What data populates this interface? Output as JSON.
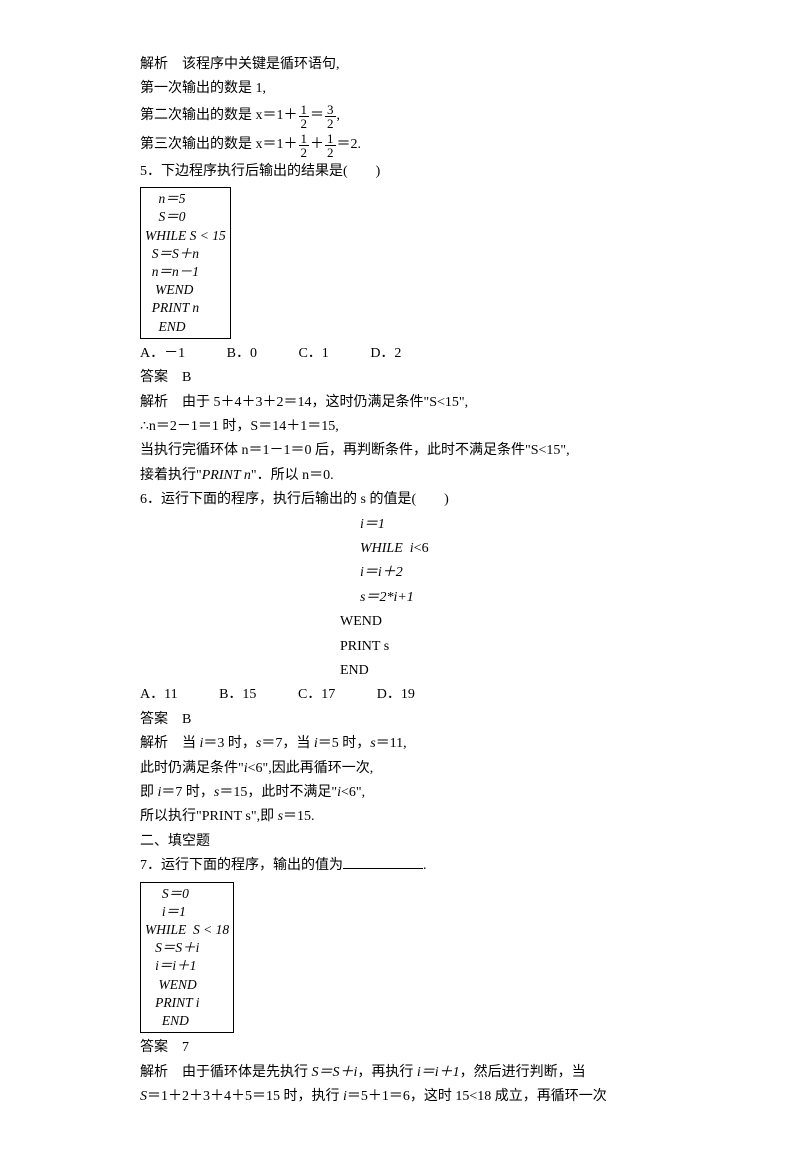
{
  "intro": {
    "l1": "解析　该程序中关键是循环语句,",
    "l2": "第一次输出的数是 1,",
    "l3a": "第二次输出的数是 x＝1＋",
    "l3b": "＝",
    "l3c": ",",
    "f1n": "1",
    "f1d": "2",
    "f2n": "3",
    "f2d": "2",
    "l4a": "第三次输出的数是 x＝1＋",
    "l4b": "＋",
    "l4c": "＝2.",
    "f3n": "1",
    "f3d": "2",
    "f4n": "1",
    "f4d": "2"
  },
  "q5": {
    "title": "5．下边程序执行后输出的结果是(　　)",
    "code": [
      "    n＝5",
      "    S＝0",
      "WHILE S < 15",
      "  S＝S＋n",
      "  n＝n－1",
      "   WEND",
      "  PRINT n",
      "    END"
    ],
    "optA": "A．－1",
    "optB": "B．0",
    "optC": "C．1",
    "optD": "D．2",
    "ans": "答案　B",
    "e1": "解析　由于 5＋4＋3＋2＝14，这时仍满足条件\"S<15\",",
    "e2": "∴n＝2－1＝1 时，S＝14＋1＝15,",
    "e3": "当执行完循环体 n＝1－1＝0 后，再判断条件，此时不满足条件\"S<15\",",
    "e4": "接着执行\"PRINT n\"．所以 n＝0."
  },
  "q6": {
    "title": "6．运行下面的程序，执行后输出的 s 的值是(　　)",
    "c1": "i＝1",
    "c2": "WHILE  i<6",
    "c3": " i＝i＋2",
    "c4": " s＝2*i+1",
    "c5": "WEND",
    "c6": "PRINT s",
    "c7": "END",
    "optA": "A．11",
    "optB": "B．15",
    "optC": "C．17",
    "optD": "D．19",
    "ans": "答案　B",
    "e1": "解析　当 i＝3 时，s＝7，当 i＝5 时，s＝11,",
    "e2": "此时仍满足条件\"i<6\",因此再循环一次,",
    "e3": "即 i＝7 时，s＝15，此时不满足\"i<6\",",
    "e4": "所以执行\"PRINT s\",即 s＝15."
  },
  "sec2": "二、填空题",
  "q7": {
    "title": "7．运行下面的程序，输出的值为",
    "title2": ".",
    "code": [
      "     S＝0",
      "     i＝1",
      "WHILE  S < 18",
      "   S＝S＋i",
      "   i＝i＋1",
      "    WEND",
      "   PRINT i",
      "     END"
    ],
    "ans": "答案　7",
    "e1": "解析　由于循环体是先执行 S＝S＋i，再执行 i＝i＋1，然后进行判断，当",
    "e2": "S＝1＋2＋3＋4＋5＝15 时，执行 i＝5＋1＝6，这时 15<18 成立，再循环一次"
  }
}
